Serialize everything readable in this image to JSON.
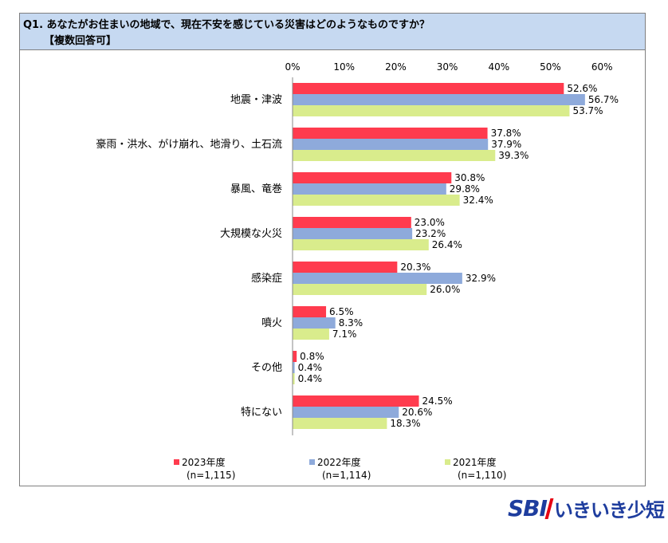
{
  "question": {
    "line1": "Q1. あなたがお住まいの地域で、現在不安を感じている災害はどのようなものですか？",
    "line2": "【複数回答可】"
  },
  "colors": {
    "series_2023": "#ff3b4e",
    "series_2022": "#8eaadb",
    "series_2021": "#d9ec8c",
    "header_bg": "#c6d9f1",
    "logo_blue": "#1e3d9e",
    "logo_red": "#e60012"
  },
  "legend": [
    {
      "label": "2023年度",
      "n": "(n=1,115)"
    },
    {
      "label": "2022年度",
      "n": "(n=1,114)"
    },
    {
      "label": "2021年度",
      "n": "(n=1,110)"
    }
  ],
  "logo": {
    "brand": "SBI",
    "name": "いきいき少短"
  },
  "chart_data": {
    "type": "bar",
    "orientation": "horizontal",
    "categories": [
      "地震・津波",
      "豪雨・洪水、がけ崩れ、地滑り、土石流",
      "暴風、竜巻",
      "大規模な火災",
      "感染症",
      "噴火",
      "その他",
      "特にない"
    ],
    "series": [
      {
        "name": "2023年度",
        "values": [
          52.6,
          37.8,
          30.8,
          23.0,
          20.3,
          6.5,
          0.8,
          24.5
        ],
        "labels": [
          "52.6%",
          "37.8%",
          "30.8%",
          "23.0%",
          "20.3%",
          "6.5%",
          "0.8%",
          "24.5%"
        ]
      },
      {
        "name": "2022年度",
        "values": [
          56.7,
          37.9,
          29.8,
          23.2,
          32.9,
          8.3,
          0.4,
          20.6
        ],
        "labels": [
          "56.7%",
          "37.9%",
          "29.8%",
          "23.2%",
          "32.9%",
          "8.3%",
          "0.4%",
          "20.6%"
        ]
      },
      {
        "name": "2021年度",
        "values": [
          53.7,
          39.3,
          32.4,
          26.4,
          26.0,
          7.1,
          0.4,
          18.3
        ],
        "labels": [
          "53.7%",
          "39.3%",
          "32.4%",
          "26.4%",
          "26.0%",
          "7.1%",
          "0.4%",
          "18.3%"
        ]
      }
    ],
    "xlim": [
      0,
      60
    ],
    "x_ticks": [
      "0%",
      "10%",
      "20%",
      "30%",
      "40%",
      "50%",
      "60%"
    ],
    "axis_position": "top",
    "grid": false,
    "legend_position": "bottom"
  }
}
